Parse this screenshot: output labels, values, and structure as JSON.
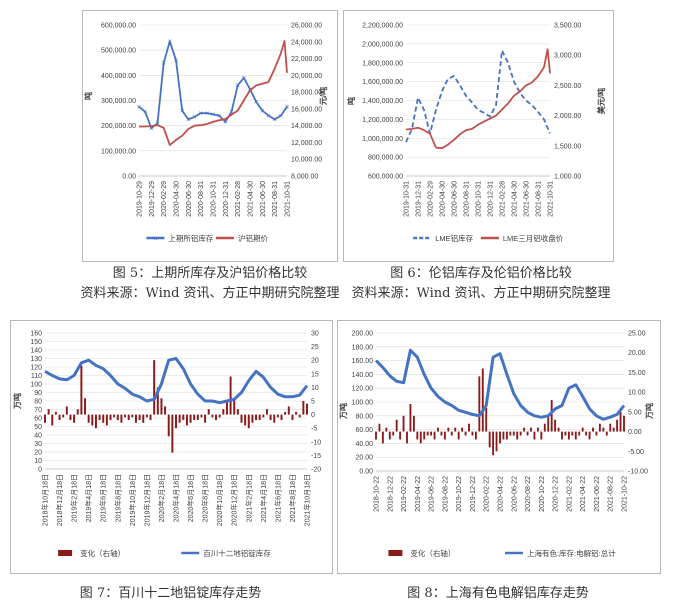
{
  "captions": {
    "fig5_title": "图 5：上期所库存及沪铝价格比较",
    "fig5_source": "资料来源：Wind 资讯、方正中期研究院整理",
    "fig6_title": "图 6：伦铝库存及伦铝价格比较",
    "fig6_source": "资料来源：Wind 资讯、方正中期研究院整理",
    "fig7_title": "图 7：百川十二地铝锭库存走势",
    "fig8_title": "图 8：上海有色电解铝库存走势"
  },
  "chart_data": [
    {
      "type": "line",
      "title": "",
      "ylabel_left": "吨",
      "ylabel_right": "元/吨",
      "yleft": {
        "min": 0,
        "max": 600000,
        "ticks": [
          "0.00",
          "100,000.00",
          "200,000.00",
          "300,000.00",
          "400,000.00",
          "500,000.00",
          "600,000.00"
        ]
      },
      "yright": {
        "min": 8000,
        "max": 26000,
        "ticks": [
          "8,000.00",
          "10,000.00",
          "12,000.00",
          "14,000.00",
          "16,000.00",
          "18,000.00",
          "20,000.00",
          "22,000.00",
          "24,000.00",
          "26,000.00"
        ]
      },
      "xticks": [
        "2019-10-29",
        "2019-12-29",
        "2020-02-29",
        "2020-04-30",
        "2020-06-30",
        "2020-08-31",
        "2020-10-31",
        "2020-12-31",
        "2021-02-28",
        "2021-04-30",
        "2021-06-30",
        "2021-08-31",
        "2021-10-31"
      ],
      "series": [
        {
          "name": "上期所铝库存",
          "axis": "left",
          "color": "#4472c4",
          "style": "line-x",
          "x": [
            0,
            0.5,
            1,
            1.5,
            2,
            2.5,
            3,
            3.5,
            4,
            4.5,
            5,
            5.5,
            6,
            6.5,
            7,
            7.5,
            8,
            8.5,
            9,
            9.5,
            10,
            10.5,
            11,
            11.5,
            12
          ],
          "y": [
            275000,
            255000,
            190000,
            210000,
            450000,
            535000,
            460000,
            260000,
            225000,
            235000,
            250000,
            250000,
            245000,
            240000,
            215000,
            255000,
            360000,
            390000,
            345000,
            295000,
            260000,
            240000,
            225000,
            240000,
            275000
          ]
        },
        {
          "name": "沪铝期价",
          "axis": "right",
          "color": "#c0504d",
          "style": "line",
          "x": [
            0,
            0.5,
            1,
            1.5,
            2,
            2.5,
            3,
            3.5,
            4,
            4.5,
            5,
            5.5,
            6,
            6.5,
            7,
            7.5,
            8,
            8.5,
            9,
            9.5,
            10,
            10.5,
            11,
            11.5,
            11.8,
            12
          ],
          "y": [
            13900,
            13900,
            13950,
            14050,
            13750,
            11700,
            12300,
            12800,
            13600,
            14000,
            14050,
            14200,
            14450,
            14650,
            14800,
            15300,
            15800,
            17000,
            18200,
            18800,
            19000,
            19200,
            20800,
            22600,
            24100,
            20300
          ]
        }
      ]
    },
    {
      "type": "line",
      "title": "",
      "ylabel_left": "吨",
      "ylabel_right": "美元/吨",
      "yleft": {
        "min": 600000,
        "max": 2200000,
        "ticks": [
          "600,000.00",
          "800,000.00",
          "1,000,000.00",
          "1,200,000.00",
          "1,400,000.00",
          "1,600,000.00",
          "1,800,000.00",
          "2,000,000.00",
          "2,200,000.00"
        ]
      },
      "yright": {
        "min": 1000,
        "max": 3500,
        "ticks": [
          "1,000.00",
          "1,500.00",
          "2,000.00",
          "2,500.00",
          "3,000.00",
          "3,500.00"
        ]
      },
      "xticks": [
        "2019-10-31",
        "2019-12-31",
        "2020-02-29",
        "2020-04-30",
        "2020-06-30",
        "2020-08-31",
        "2020-10-31",
        "2020-12-31",
        "2021-02-28",
        "2021-04-30",
        "2021-06-30",
        "2021-08-31",
        "2021-10-31"
      ],
      "series": [
        {
          "name": "LME铝库存",
          "axis": "left",
          "color": "#4472c4",
          "style": "dashed",
          "x": [
            0,
            0.5,
            1,
            1.5,
            2,
            2.5,
            3,
            3.5,
            4,
            4.5,
            5,
            5.5,
            6,
            6.5,
            7,
            7.5,
            8,
            8.5,
            9,
            9.5,
            10,
            10.5,
            11,
            11.5,
            12
          ],
          "y": [
            960000,
            1100000,
            1430000,
            1300000,
            1050000,
            1300000,
            1500000,
            1630000,
            1660000,
            1560000,
            1450000,
            1380000,
            1300000,
            1270000,
            1230000,
            1350000,
            1930000,
            1800000,
            1600000,
            1480000,
            1400000,
            1350000,
            1280000,
            1200000,
            1050000
          ]
        },
        {
          "name": "LME三月铝收盘价",
          "axis": "right",
          "color": "#c0504d",
          "style": "line",
          "x": [
            0,
            0.5,
            1,
            1.5,
            2,
            2.5,
            3,
            3.5,
            4,
            4.5,
            5,
            5.5,
            6,
            6.5,
            7,
            7.5,
            8,
            8.5,
            9,
            9.5,
            10,
            10.5,
            11,
            11.5,
            11.8,
            12
          ],
          "y": [
            1770,
            1780,
            1800,
            1760,
            1700,
            1470,
            1460,
            1520,
            1600,
            1690,
            1760,
            1780,
            1850,
            1900,
            1950,
            2000,
            2100,
            2200,
            2330,
            2400,
            2500,
            2550,
            2650,
            2800,
            3100,
            2700
          ]
        }
      ]
    },
    {
      "type": "bar-line",
      "title": "",
      "ylabel_left": "万吨",
      "yleft": {
        "min": 0,
        "max": 160,
        "ticks": [
          "0",
          "10",
          "20",
          "30",
          "40",
          "50",
          "60",
          "70",
          "80",
          "90",
          "100",
          "110",
          "120",
          "130",
          "140",
          "150",
          "160"
        ]
      },
      "yright": {
        "min": -20,
        "max": 30,
        "ticks": [
          "-20",
          "-15",
          "-10",
          "-5",
          "0",
          "5",
          "10",
          "15",
          "20",
          "25",
          "30"
        ]
      },
      "xticks": [
        "2018年10月18日",
        "2018年12月18日",
        "2019年2月18日",
        "2019年4月18日",
        "2019年6月18日",
        "2019年8月18日",
        "2019年10月18日",
        "2019年12月18日",
        "2020年2月18日",
        "2020年4月18日",
        "2020年6月18日",
        "2020年8月18日",
        "2020年10月18日",
        "2020年12月18日",
        "2021年2月18日",
        "2021年4月18日",
        "2021年6月18日",
        "2021年8月18日",
        "2021年10月18日"
      ],
      "series": [
        {
          "name": "变化（右轴）",
          "axis": "right",
          "color": "#8b1a1a",
          "style": "bar",
          "x": [
            0,
            0.25,
            0.5,
            0.75,
            1,
            1.25,
            1.5,
            1.75,
            2,
            2.25,
            2.5,
            2.75,
            3,
            3.25,
            3.5,
            3.75,
            4,
            4.25,
            4.5,
            4.75,
            5,
            5.25,
            5.5,
            5.75,
            6,
            6.25,
            6.5,
            6.75,
            7,
            7.25,
            7.5,
            7.75,
            8,
            8.25,
            8.5,
            8.75,
            9,
            9.25,
            9.5,
            9.75,
            10,
            10.25,
            10.5,
            10.75,
            11,
            11.25,
            11.5,
            11.75,
            12,
            12.25,
            12.5,
            12.75,
            13,
            13.25,
            13.5,
            13.75,
            14,
            14.25,
            14.5,
            14.75,
            15,
            15.25,
            15.5,
            15.75,
            16,
            16.25,
            16.5,
            16.75,
            17,
            17.25,
            17.5,
            17.75,
            18
          ],
          "y": [
            -3,
            2,
            -4,
            1,
            -2,
            -1,
            3,
            -2,
            -3,
            2,
            18,
            6,
            -3,
            -4,
            -5,
            -2,
            -3,
            -4,
            -2,
            -1,
            -2,
            -3,
            -1,
            -2,
            -1,
            -3,
            -2,
            -3,
            -1,
            -2,
            20,
            10,
            6,
            3,
            -8,
            -14,
            -5,
            -3,
            -2,
            -4,
            -3,
            -2,
            -2,
            -1,
            -3,
            2,
            -1,
            -2,
            -1,
            2,
            5,
            14,
            6,
            2,
            -3,
            -4,
            -5,
            -3,
            -2,
            -2,
            -1,
            2,
            -2,
            -3,
            -1,
            -2,
            1,
            3,
            -2,
            1,
            -1,
            5,
            4
          ]
        },
        {
          "name": "百川十二地铝锭库存",
          "axis": "left",
          "color": "#4472c4",
          "style": "line",
          "x": [
            0,
            0.5,
            1,
            1.5,
            2,
            2.5,
            3,
            3.5,
            4,
            4.5,
            5,
            5.5,
            6,
            6.5,
            7,
            7.5,
            8,
            8.5,
            9,
            9.5,
            10,
            10.5,
            11,
            11.5,
            12,
            12.5,
            13,
            13.5,
            14,
            14.5,
            15,
            15.5,
            16,
            16.5,
            17,
            17.5,
            18
          ],
          "y": [
            115,
            110,
            106,
            105,
            110,
            125,
            128,
            122,
            118,
            110,
            100,
            95,
            88,
            85,
            80,
            82,
            100,
            128,
            130,
            118,
            100,
            88,
            80,
            80,
            78,
            80,
            82,
            90,
            104,
            115,
            108,
            96,
            88,
            85,
            85,
            87,
            98
          ]
        }
      ]
    },
    {
      "type": "bar-line",
      "title": "",
      "ylabel_left": "万吨",
      "ylabel_right": "万吨",
      "yleft": {
        "min": 0,
        "max": 200,
        "ticks": [
          "0.00",
          "20.00",
          "40.00",
          "60.00",
          "80.00",
          "100.00",
          "120.00",
          "140.00",
          "160.00",
          "180.00",
          "200.00"
        ]
      },
      "yright": {
        "min": -10,
        "max": 25,
        "ticks": [
          "-10.00",
          "-5.00",
          "0.00",
          "5.00",
          "10.00",
          "15.00",
          "20.00",
          "25.00"
        ]
      },
      "xticks": [
        "2018-10-22",
        "2018-12-22",
        "2019-02-22",
        "2019-04-22",
        "2019-06-22",
        "2019-08-22",
        "2019-10-22",
        "2019-12-22",
        "2020-02-22",
        "2020-04-22",
        "2020-06-22",
        "2020-08-22",
        "2020-10-22",
        "2020-12-22",
        "2021-02-22",
        "2021-04-22",
        "2021-06-22",
        "2021-08-22",
        "2021-10-22"
      ],
      "series": [
        {
          "name": "变化（右轴）",
          "axis": "right",
          "color": "#8b1a1a",
          "style": "bar",
          "x": [
            0,
            0.25,
            0.5,
            0.75,
            1,
            1.25,
            1.5,
            1.75,
            2,
            2.25,
            2.5,
            2.75,
            3,
            3.25,
            3.5,
            3.75,
            4,
            4.25,
            4.5,
            4.75,
            5,
            5.25,
            5.5,
            5.75,
            6,
            6.25,
            6.5,
            6.75,
            7,
            7.25,
            7.5,
            7.75,
            8,
            8.25,
            8.5,
            8.75,
            9,
            9.25,
            9.5,
            9.75,
            10,
            10.25,
            10.5,
            10.75,
            11,
            11.25,
            11.5,
            11.75,
            12,
            12.25,
            12.5,
            12.75,
            13,
            13.25,
            13.5,
            13.75,
            14,
            14.25,
            14.5,
            14.75,
            15,
            15.25,
            15.5,
            15.75,
            16,
            16.25,
            16.5,
            16.75,
            17,
            17.25,
            17.5,
            17.75,
            18
          ],
          "y": [
            -2,
            2,
            -3,
            1,
            -2,
            -1,
            3,
            -2,
            4,
            -3,
            7,
            4,
            -2,
            -3,
            -2,
            -1,
            -1,
            -2,
            1,
            -1,
            -2,
            1,
            -1,
            1,
            -2,
            1,
            -1,
            2,
            -1,
            -2,
            14,
            16,
            6,
            -4,
            -6,
            -5,
            -3,
            -2,
            -2,
            -1,
            -1,
            -2,
            -1,
            1,
            -1,
            1,
            -2,
            1,
            -2,
            2,
            4,
            8,
            3,
            1,
            -2,
            -1,
            -2,
            -1,
            -2,
            -1,
            1,
            -1,
            -2,
            1,
            -1,
            2,
            1,
            -1,
            2,
            1,
            3,
            5,
            4
          ]
        },
        {
          "name": "上海有色:库存:电解铝:总计",
          "axis": "left",
          "color": "#4472c4",
          "style": "line",
          "x": [
            0,
            0.5,
            1,
            1.5,
            2,
            2.5,
            3,
            3.5,
            4,
            4.5,
            5,
            5.5,
            6,
            6.5,
            7,
            7.5,
            8,
            8.5,
            9,
            9.5,
            10,
            10.5,
            11,
            11.5,
            12,
            12.5,
            13,
            13.5,
            14,
            14.5,
            15,
            15.5,
            16,
            16.5,
            17,
            17.5,
            18
          ],
          "y": [
            160,
            150,
            138,
            130,
            128,
            175,
            165,
            140,
            120,
            108,
            100,
            95,
            88,
            85,
            82,
            80,
            95,
            165,
            170,
            140,
            112,
            95,
            85,
            80,
            78,
            80,
            90,
            95,
            120,
            125,
            108,
            90,
            80,
            75,
            78,
            82,
            95
          ]
        }
      ]
    }
  ]
}
